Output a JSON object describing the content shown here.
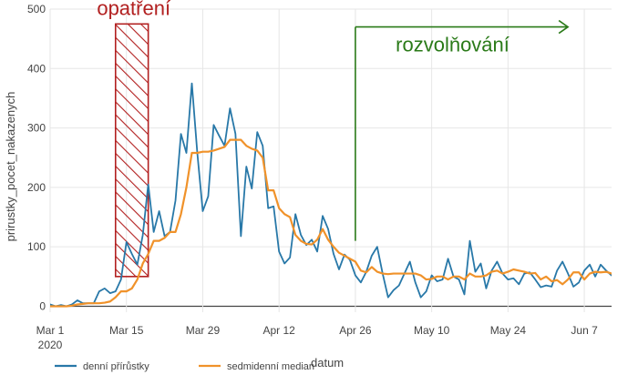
{
  "chart_data": {
    "type": "line",
    "xlabel": "datum",
    "ylabel": "prirustky_pocet_nakazenych",
    "start_date": "2020-03-01",
    "xlim": [
      "2020-03-01",
      "2020-06-12"
    ],
    "ylim": [
      -10,
      500
    ],
    "grid": true,
    "legend_position": "bottom-left",
    "x_ticks": [
      {
        "date": "2020-03-01",
        "label": "Mar 1",
        "sublabel": "2020"
      },
      {
        "date": "2020-03-15",
        "label": "Mar 15",
        "sublabel": ""
      },
      {
        "date": "2020-03-29",
        "label": "Mar 29",
        "sublabel": ""
      },
      {
        "date": "2020-04-12",
        "label": "Apr 12",
        "sublabel": ""
      },
      {
        "date": "2020-04-26",
        "label": "Apr 26",
        "sublabel": ""
      },
      {
        "date": "2020-05-10",
        "label": "May 10",
        "sublabel": ""
      },
      {
        "date": "2020-05-24",
        "label": "May 24",
        "sublabel": ""
      },
      {
        "date": "2020-06-07",
        "label": "Jun 7",
        "sublabel": ""
      }
    ],
    "y_ticks": [
      0,
      100,
      200,
      300,
      400,
      500
    ],
    "series": [
      {
        "name": "denní přírůstky",
        "color": "#2878a8",
        "values": [
          3,
          0,
          2,
          0,
          3,
          10,
          5,
          5,
          5,
          25,
          30,
          22,
          25,
          45,
          108,
          88,
          70,
          120,
          205,
          125,
          160,
          118,
          125,
          178,
          290,
          258,
          375,
          258,
          160,
          185,
          305,
          287,
          270,
          333,
          290,
          118,
          235,
          198,
          293,
          270,
          165,
          168,
          92,
          72,
          82,
          155,
          120,
          103,
          112,
          92,
          152,
          130,
          88,
          62,
          87,
          78,
          52,
          40,
          58,
          85,
          100,
          55,
          15,
          27,
          35,
          55,
          75,
          40,
          15,
          25,
          52,
          42,
          45,
          80,
          50,
          45,
          20,
          110,
          58,
          72,
          30,
          60,
          75,
          55,
          45,
          47,
          37,
          55,
          57,
          45,
          32,
          35,
          33,
          60,
          75,
          55,
          33,
          40,
          60,
          70,
          50,
          70,
          60,
          52
        ],
        "start_date": "2020-03-01"
      },
      {
        "name": "sedmidenní median",
        "color": "#f0922a",
        "values": [
          0,
          0,
          0,
          0,
          1,
          3,
          4,
          5,
          5,
          5,
          6,
          8,
          15,
          25,
          25,
          30,
          45,
          72,
          88,
          110,
          110,
          115,
          125,
          125,
          155,
          200,
          258,
          258,
          260,
          260,
          262,
          265,
          268,
          280,
          280,
          280,
          270,
          265,
          262,
          250,
          195,
          195,
          165,
          155,
          150,
          120,
          110,
          105,
          104,
          112,
          130,
          112,
          100,
          90,
          85,
          80,
          75,
          60,
          57,
          66,
          58,
          55,
          54,
          55,
          55,
          55,
          55,
          55,
          52,
          45,
          46,
          50,
          50,
          45,
          50,
          50,
          45,
          55,
          50,
          50,
          52,
          58,
          60,
          55,
          58,
          62,
          60,
          58,
          55,
          56,
          45,
          50,
          42,
          44,
          37,
          45,
          57,
          57,
          45,
          55,
          58,
          57,
          58,
          55
        ],
        "start_date": "2020-03-01"
      }
    ],
    "annotations": [
      {
        "id": "opatreni",
        "text": "opatření",
        "color": "#b22020",
        "start_date": "2020-03-13",
        "end_date": "2020-03-19",
        "y_low": 50,
        "y_high": 475
      },
      {
        "id": "rozvolnovani",
        "text": "rozvolňování",
        "color": "#2a7a18",
        "start_date": "2020-04-26",
        "end_date": "2020-06-04",
        "y_low": 110,
        "y_high": 470
      }
    ]
  }
}
